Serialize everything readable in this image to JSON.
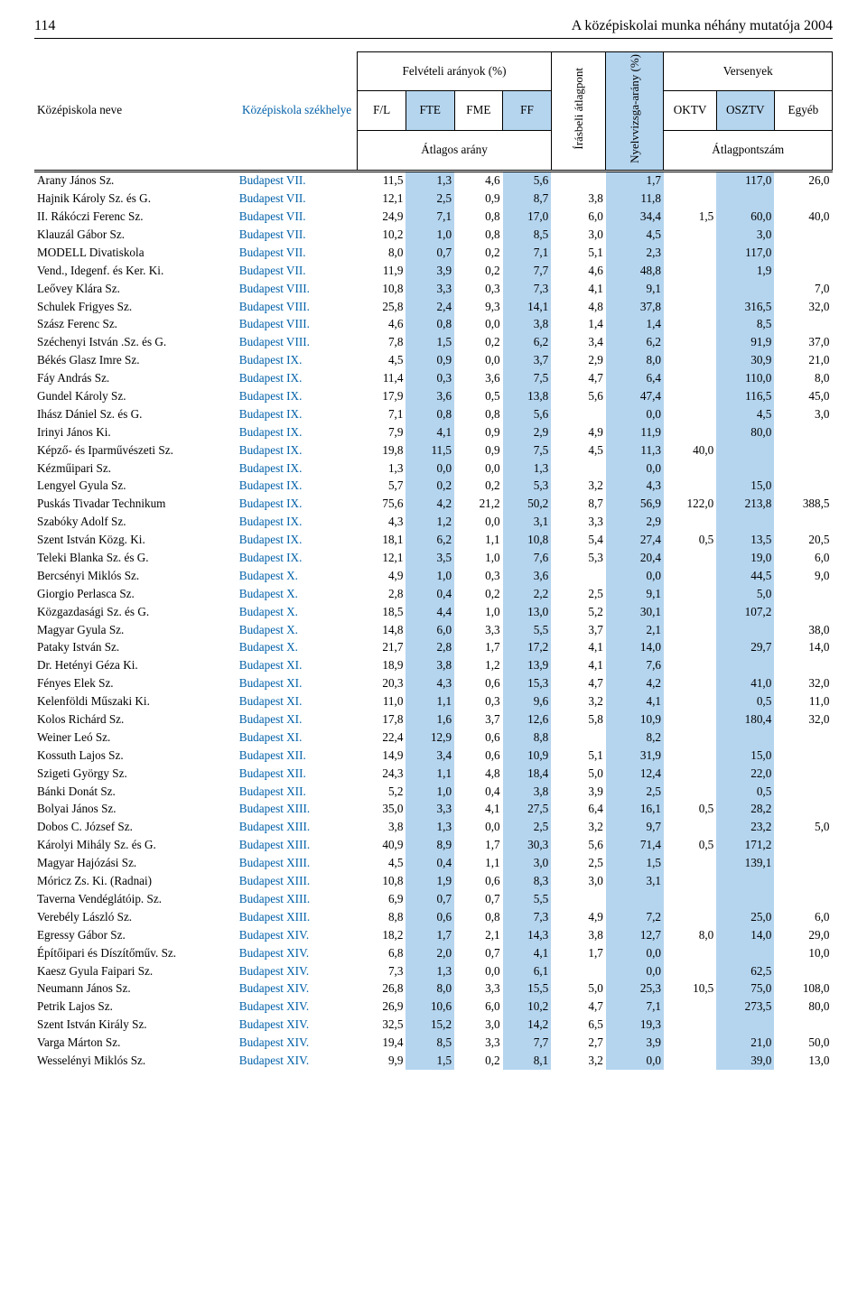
{
  "page_number": "114",
  "page_title": "A középiskolai munka néhány mutatója 2004",
  "colors": {
    "highlight_bg": "#b5d5ef",
    "link_color": "#0060a8",
    "text_color": "#000000",
    "background": "#ffffff"
  },
  "fonts": {
    "main_family": "Palatino",
    "body_size_pt": 10,
    "header_size_pt": 10,
    "pagenum_size_pt": 12
  },
  "header": {
    "col_school_name": "Középiskola neve",
    "col_school_loc": "Középiskola székhelye",
    "group_felveteli": "Felvételi arányok (%)",
    "fl": "F/L",
    "fte": "FTE",
    "fme": "FME",
    "ff": "FF",
    "atlagos_arany": "Átlagos arány",
    "irasbeli": "Írásbeli átlagpont",
    "nyelv": "Nyelvvizsga-arány (%)",
    "group_versenyek": "Versenyek",
    "oktv": "OKTV",
    "osztv": "OSZTV",
    "egyeb": "Egyéb",
    "atlagpontszam": "Átlagpontszám"
  },
  "rows": [
    {
      "nev": "Arany János Sz.",
      "szek": "Budapest VII.",
      "fl": "11,5",
      "fte": "1,3",
      "fme": "4,6",
      "ff": "5,6",
      "iras": "",
      "nyelv": "1,7",
      "oktv": "",
      "osztv": "117,0",
      "egyeb": "26,0"
    },
    {
      "nev": "Hajnik Károly Sz. és G.",
      "szek": "Budapest VII.",
      "fl": "12,1",
      "fte": "2,5",
      "fme": "0,9",
      "ff": "8,7",
      "iras": "3,8",
      "nyelv": "11,8",
      "oktv": "",
      "osztv": "",
      "egyeb": ""
    },
    {
      "nev": "II. Rákóczi Ferenc Sz.",
      "szek": "Budapest VII.",
      "fl": "24,9",
      "fte": "7,1",
      "fme": "0,8",
      "ff": "17,0",
      "iras": "6,0",
      "nyelv": "34,4",
      "oktv": "1,5",
      "osztv": "60,0",
      "egyeb": "40,0"
    },
    {
      "nev": "Klauzál Gábor Sz.",
      "szek": "Budapest VII.",
      "fl": "10,2",
      "fte": "1,0",
      "fme": "0,8",
      "ff": "8,5",
      "iras": "3,0",
      "nyelv": "4,5",
      "oktv": "",
      "osztv": "3,0",
      "egyeb": ""
    },
    {
      "nev": "MODELL Divatiskola",
      "szek": "Budapest VII.",
      "fl": "8,0",
      "fte": "0,7",
      "fme": "0,2",
      "ff": "7,1",
      "iras": "5,1",
      "nyelv": "2,3",
      "oktv": "",
      "osztv": "117,0",
      "egyeb": ""
    },
    {
      "nev": "Vend., Idegenf. és Ker. Ki.",
      "szek": "Budapest VII.",
      "fl": "11,9",
      "fte": "3,9",
      "fme": "0,2",
      "ff": "7,7",
      "iras": "4,6",
      "nyelv": "48,8",
      "oktv": "",
      "osztv": "1,9",
      "egyeb": ""
    },
    {
      "nev": "Leővey Klára Sz.",
      "szek": "Budapest VIII.",
      "fl": "10,8",
      "fte": "3,3",
      "fme": "0,3",
      "ff": "7,3",
      "iras": "4,1",
      "nyelv": "9,1",
      "oktv": "",
      "osztv": "",
      "egyeb": "7,0"
    },
    {
      "nev": "Schulek Frigyes Sz.",
      "szek": "Budapest VIII.",
      "fl": "25,8",
      "fte": "2,4",
      "fme": "9,3",
      "ff": "14,1",
      "iras": "4,8",
      "nyelv": "37,8",
      "oktv": "",
      "osztv": "316,5",
      "egyeb": "32,0"
    },
    {
      "nev": "Szász Ferenc Sz.",
      "szek": "Budapest VIII.",
      "fl": "4,6",
      "fte": "0,8",
      "fme": "0,0",
      "ff": "3,8",
      "iras": "1,4",
      "nyelv": "1,4",
      "oktv": "",
      "osztv": "8,5",
      "egyeb": ""
    },
    {
      "nev": "Széchenyi István .Sz. és G.",
      "szek": "Budapest VIII.",
      "fl": "7,8",
      "fte": "1,5",
      "fme": "0,2",
      "ff": "6,2",
      "iras": "3,4",
      "nyelv": "6,2",
      "oktv": "",
      "osztv": "91,9",
      "egyeb": "37,0"
    },
    {
      "nev": "Békés Glasz Imre Sz.",
      "szek": "Budapest IX.",
      "fl": "4,5",
      "fte": "0,9",
      "fme": "0,0",
      "ff": "3,7",
      "iras": "2,9",
      "nyelv": "8,0",
      "oktv": "",
      "osztv": "30,9",
      "egyeb": "21,0"
    },
    {
      "nev": "Fáy András Sz.",
      "szek": "Budapest IX.",
      "fl": "11,4",
      "fte": "0,3",
      "fme": "3,6",
      "ff": "7,5",
      "iras": "4,7",
      "nyelv": "6,4",
      "oktv": "",
      "osztv": "110,0",
      "egyeb": "8,0"
    },
    {
      "nev": "Gundel Károly Sz.",
      "szek": "Budapest IX.",
      "fl": "17,9",
      "fte": "3,6",
      "fme": "0,5",
      "ff": "13,8",
      "iras": "5,6",
      "nyelv": "47,4",
      "oktv": "",
      "osztv": "116,5",
      "egyeb": "45,0"
    },
    {
      "nev": "Ihász Dániel Sz. és G.",
      "szek": "Budapest IX.",
      "fl": "7,1",
      "fte": "0,8",
      "fme": "0,8",
      "ff": "5,6",
      "iras": "",
      "nyelv": "0,0",
      "oktv": "",
      "osztv": "4,5",
      "egyeb": "3,0"
    },
    {
      "nev": "Irinyi János Ki.",
      "szek": "Budapest IX.",
      "fl": "7,9",
      "fte": "4,1",
      "fme": "0,9",
      "ff": "2,9",
      "iras": "4,9",
      "nyelv": "11,9",
      "oktv": "",
      "osztv": "80,0",
      "egyeb": ""
    },
    {
      "nev": "Képző- és Iparművészeti Sz.",
      "szek": "Budapest IX.",
      "fl": "19,8",
      "fte": "11,5",
      "fme": "0,9",
      "ff": "7,5",
      "iras": "4,5",
      "nyelv": "11,3",
      "oktv": "40,0",
      "osztv": "",
      "egyeb": ""
    },
    {
      "nev": "Kézműipari Sz.",
      "szek": "Budapest IX.",
      "fl": "1,3",
      "fte": "0,0",
      "fme": "0,0",
      "ff": "1,3",
      "iras": "",
      "nyelv": "0,0",
      "oktv": "",
      "osztv": "",
      "egyeb": ""
    },
    {
      "nev": "Lengyel Gyula Sz.",
      "szek": "Budapest IX.",
      "fl": "5,7",
      "fte": "0,2",
      "fme": "0,2",
      "ff": "5,3",
      "iras": "3,2",
      "nyelv": "4,3",
      "oktv": "",
      "osztv": "15,0",
      "egyeb": ""
    },
    {
      "nev": "Puskás Tivadar Technikum",
      "szek": "Budapest IX.",
      "fl": "75,6",
      "fte": "4,2",
      "fme": "21,2",
      "ff": "50,2",
      "iras": "8,7",
      "nyelv": "56,9",
      "oktv": "122,0",
      "osztv": "213,8",
      "egyeb": "388,5"
    },
    {
      "nev": "Szabóky Adolf Sz.",
      "szek": "Budapest IX.",
      "fl": "4,3",
      "fte": "1,2",
      "fme": "0,0",
      "ff": "3,1",
      "iras": "3,3",
      "nyelv": "2,9",
      "oktv": "",
      "osztv": "",
      "egyeb": ""
    },
    {
      "nev": "Szent István Közg. Ki.",
      "szek": "Budapest IX.",
      "fl": "18,1",
      "fte": "6,2",
      "fme": "1,1",
      "ff": "10,8",
      "iras": "5,4",
      "nyelv": "27,4",
      "oktv": "0,5",
      "osztv": "13,5",
      "egyeb": "20,5"
    },
    {
      "nev": "Teleki Blanka Sz. és G.",
      "szek": "Budapest IX.",
      "fl": "12,1",
      "fte": "3,5",
      "fme": "1,0",
      "ff": "7,6",
      "iras": "5,3",
      "nyelv": "20,4",
      "oktv": "",
      "osztv": "19,0",
      "egyeb": "6,0"
    },
    {
      "nev": "Bercsényi Miklós Sz.",
      "szek": "Budapest X.",
      "fl": "4,9",
      "fte": "1,0",
      "fme": "0,3",
      "ff": "3,6",
      "iras": "",
      "nyelv": "0,0",
      "oktv": "",
      "osztv": "44,5",
      "egyeb": "9,0"
    },
    {
      "nev": "Giorgio Perlasca Sz.",
      "szek": "Budapest X.",
      "fl": "2,8",
      "fte": "0,4",
      "fme": "0,2",
      "ff": "2,2",
      "iras": "2,5",
      "nyelv": "9,1",
      "oktv": "",
      "osztv": "5,0",
      "egyeb": ""
    },
    {
      "nev": "Közgazdasági Sz. és G.",
      "szek": "Budapest X.",
      "fl": "18,5",
      "fte": "4,4",
      "fme": "1,0",
      "ff": "13,0",
      "iras": "5,2",
      "nyelv": "30,1",
      "oktv": "",
      "osztv": "107,2",
      "egyeb": ""
    },
    {
      "nev": "Magyar Gyula Sz.",
      "szek": "Budapest X.",
      "fl": "14,8",
      "fte": "6,0",
      "fme": "3,3",
      "ff": "5,5",
      "iras": "3,7",
      "nyelv": "2,1",
      "oktv": "",
      "osztv": "",
      "egyeb": "38,0"
    },
    {
      "nev": "Pataky István Sz.",
      "szek": "Budapest X.",
      "fl": "21,7",
      "fte": "2,8",
      "fme": "1,7",
      "ff": "17,2",
      "iras": "4,1",
      "nyelv": "14,0",
      "oktv": "",
      "osztv": "29,7",
      "egyeb": "14,0"
    },
    {
      "nev": "Dr. Hetényi Géza Ki.",
      "szek": "Budapest XI.",
      "fl": "18,9",
      "fte": "3,8",
      "fme": "1,2",
      "ff": "13,9",
      "iras": "4,1",
      "nyelv": "7,6",
      "oktv": "",
      "osztv": "",
      "egyeb": ""
    },
    {
      "nev": "Fényes Elek Sz.",
      "szek": "Budapest XI.",
      "fl": "20,3",
      "fte": "4,3",
      "fme": "0,6",
      "ff": "15,3",
      "iras": "4,7",
      "nyelv": "4,2",
      "oktv": "",
      "osztv": "41,0",
      "egyeb": "32,0"
    },
    {
      "nev": "Kelenföldi Műszaki Ki.",
      "szek": "Budapest XI.",
      "fl": "11,0",
      "fte": "1,1",
      "fme": "0,3",
      "ff": "9,6",
      "iras": "3,2",
      "nyelv": "4,1",
      "oktv": "",
      "osztv": "0,5",
      "egyeb": "11,0"
    },
    {
      "nev": "Kolos Richárd Sz.",
      "szek": "Budapest XI.",
      "fl": "17,8",
      "fte": "1,6",
      "fme": "3,7",
      "ff": "12,6",
      "iras": "5,8",
      "nyelv": "10,9",
      "oktv": "",
      "osztv": "180,4",
      "egyeb": "32,0"
    },
    {
      "nev": "Weiner Leó Sz.",
      "szek": "Budapest XI.",
      "fl": "22,4",
      "fte": "12,9",
      "fme": "0,6",
      "ff": "8,8",
      "iras": "",
      "nyelv": "8,2",
      "oktv": "",
      "osztv": "",
      "egyeb": ""
    },
    {
      "nev": "Kossuth Lajos Sz.",
      "szek": "Budapest XII.",
      "fl": "14,9",
      "fte": "3,4",
      "fme": "0,6",
      "ff": "10,9",
      "iras": "5,1",
      "nyelv": "31,9",
      "oktv": "",
      "osztv": "15,0",
      "egyeb": ""
    },
    {
      "nev": "Szigeti György Sz.",
      "szek": "Budapest XII.",
      "fl": "24,3",
      "fte": "1,1",
      "fme": "4,8",
      "ff": "18,4",
      "iras": "5,0",
      "nyelv": "12,4",
      "oktv": "",
      "osztv": "22,0",
      "egyeb": ""
    },
    {
      "nev": "Bánki Donát Sz.",
      "szek": "Budapest XII.",
      "fl": "5,2",
      "fte": "1,0",
      "fme": "0,4",
      "ff": "3,8",
      "iras": "3,9",
      "nyelv": "2,5",
      "oktv": "",
      "osztv": "0,5",
      "egyeb": ""
    },
    {
      "nev": "Bolyai János Sz.",
      "szek": "Budapest XIII.",
      "fl": "35,0",
      "fte": "3,3",
      "fme": "4,1",
      "ff": "27,5",
      "iras": "6,4",
      "nyelv": "16,1",
      "oktv": "0,5",
      "osztv": "28,2",
      "egyeb": ""
    },
    {
      "nev": "Dobos C. József Sz.",
      "szek": "Budapest XIII.",
      "fl": "3,8",
      "fte": "1,3",
      "fme": "0,0",
      "ff": "2,5",
      "iras": "3,2",
      "nyelv": "9,7",
      "oktv": "",
      "osztv": "23,2",
      "egyeb": "5,0"
    },
    {
      "nev": "Károlyi Mihály Sz. és G.",
      "szek": "Budapest XIII.",
      "fl": "40,9",
      "fte": "8,9",
      "fme": "1,7",
      "ff": "30,3",
      "iras": "5,6",
      "nyelv": "71,4",
      "oktv": "0,5",
      "osztv": "171,2",
      "egyeb": ""
    },
    {
      "nev": "Magyar Hajózási Sz.",
      "szek": "Budapest XIII.",
      "fl": "4,5",
      "fte": "0,4",
      "fme": "1,1",
      "ff": "3,0",
      "iras": "2,5",
      "nyelv": "1,5",
      "oktv": "",
      "osztv": "139,1",
      "egyeb": ""
    },
    {
      "nev": "Móricz Zs. Ki. (Radnai)",
      "szek": "Budapest XIII.",
      "fl": "10,8",
      "fte": "1,9",
      "fme": "0,6",
      "ff": "8,3",
      "iras": "3,0",
      "nyelv": "3,1",
      "oktv": "",
      "osztv": "",
      "egyeb": ""
    },
    {
      "nev": "Taverna Vendéglátóip. Sz.",
      "szek": "Budapest XIII.",
      "fl": "6,9",
      "fte": "0,7",
      "fme": "0,7",
      "ff": "5,5",
      "iras": "",
      "nyelv": "",
      "oktv": "",
      "osztv": "",
      "egyeb": ""
    },
    {
      "nev": "Verebély László Sz.",
      "szek": "Budapest XIII.",
      "fl": "8,8",
      "fte": "0,6",
      "fme": "0,8",
      "ff": "7,3",
      "iras": "4,9",
      "nyelv": "7,2",
      "oktv": "",
      "osztv": "25,0",
      "egyeb": "6,0"
    },
    {
      "nev": "Egressy Gábor Sz.",
      "szek": "Budapest XIV.",
      "fl": "18,2",
      "fte": "1,7",
      "fme": "2,1",
      "ff": "14,3",
      "iras": "3,8",
      "nyelv": "12,7",
      "oktv": "8,0",
      "osztv": "14,0",
      "egyeb": "29,0"
    },
    {
      "nev": "Építőipari és Díszítőműv. Sz.",
      "szek": "Budapest XIV.",
      "fl": "6,8",
      "fte": "2,0",
      "fme": "0,7",
      "ff": "4,1",
      "iras": "1,7",
      "nyelv": "0,0",
      "oktv": "",
      "osztv": "",
      "egyeb": "10,0"
    },
    {
      "nev": "Kaesz Gyula Faipari Sz.",
      "szek": "Budapest XIV.",
      "fl": "7,3",
      "fte": "1,3",
      "fme": "0,0",
      "ff": "6,1",
      "iras": "",
      "nyelv": "0,0",
      "oktv": "",
      "osztv": "62,5",
      "egyeb": ""
    },
    {
      "nev": "Neumann János Sz.",
      "szek": "Budapest XIV.",
      "fl": "26,8",
      "fte": "8,0",
      "fme": "3,3",
      "ff": "15,5",
      "iras": "5,0",
      "nyelv": "25,3",
      "oktv": "10,5",
      "osztv": "75,0",
      "egyeb": "108,0"
    },
    {
      "nev": "Petrik Lajos Sz.",
      "szek": "Budapest XIV.",
      "fl": "26,9",
      "fte": "10,6",
      "fme": "6,0",
      "ff": "10,2",
      "iras": "4,7",
      "nyelv": "7,1",
      "oktv": "",
      "osztv": "273,5",
      "egyeb": "80,0"
    },
    {
      "nev": "Szent István Király Sz.",
      "szek": "Budapest XIV.",
      "fl": "32,5",
      "fte": "15,2",
      "fme": "3,0",
      "ff": "14,2",
      "iras": "6,5",
      "nyelv": "19,3",
      "oktv": "",
      "osztv": "",
      "egyeb": ""
    },
    {
      "nev": "Varga Márton Sz.",
      "szek": "Budapest XIV.",
      "fl": "19,4",
      "fte": "8,5",
      "fme": "3,3",
      "ff": "7,7",
      "iras": "2,7",
      "nyelv": "3,9",
      "oktv": "",
      "osztv": "21,0",
      "egyeb": "50,0"
    },
    {
      "nev": "Wesselényi Miklós Sz.",
      "szek": "Budapest XIV.",
      "fl": "9,9",
      "fte": "1,5",
      "fme": "0,2",
      "ff": "8,1",
      "iras": "3,2",
      "nyelv": "0,0",
      "oktv": "",
      "osztv": "39,0",
      "egyeb": "13,0"
    }
  ]
}
